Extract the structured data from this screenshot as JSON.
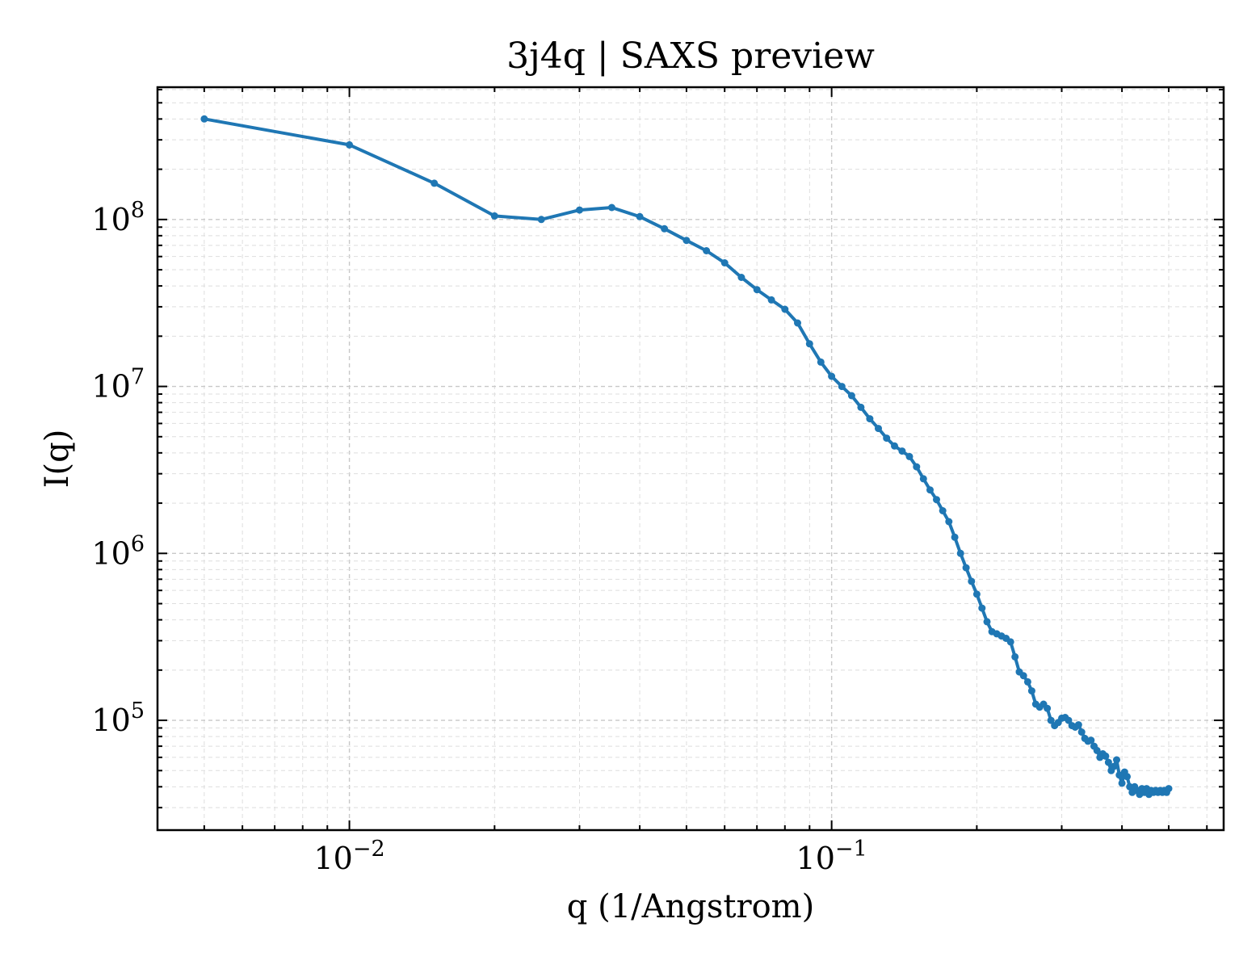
{
  "chart_data": {
    "type": "line",
    "title": "3j4q | SAXS preview",
    "xlabel": "q (1/Angstrom)",
    "ylabel": "I(q)",
    "xscale": "log",
    "yscale": "log",
    "xlim": [
      0.004,
      0.65
    ],
    "ylim": [
      22000,
      620000000
    ],
    "grid": true,
    "legend": "none",
    "x_ticks": [
      {
        "value": 0.01,
        "base": "10",
        "exp": "−2"
      },
      {
        "value": 0.1,
        "base": "10",
        "exp": "−1"
      }
    ],
    "y_ticks": [
      {
        "value": 100000,
        "base": "10",
        "exp": "5"
      },
      {
        "value": 1000000,
        "base": "10",
        "exp": "6"
      },
      {
        "value": 10000000,
        "base": "10",
        "exp": "7"
      },
      {
        "value": 100000000,
        "base": "10",
        "exp": "8"
      }
    ],
    "series": [
      {
        "color": "#1f77b4",
        "x": [
          0.005,
          0.01,
          0.015,
          0.02,
          0.025,
          0.03,
          0.035,
          0.04,
          0.045,
          0.05,
          0.055,
          0.06,
          0.065,
          0.07,
          0.075,
          0.08,
          0.085,
          0.09,
          0.095,
          0.1,
          0.105,
          0.11,
          0.115,
          0.12,
          0.125,
          0.13,
          0.135,
          0.14,
          0.145,
          0.15,
          0.155,
          0.16,
          0.165,
          0.17,
          0.175,
          0.18,
          0.185,
          0.19,
          0.195,
          0.2,
          0.205,
          0.21,
          0.215,
          0.22,
          0.225,
          0.23,
          0.235,
          0.24,
          0.245,
          0.25,
          0.255,
          0.26,
          0.265,
          0.27,
          0.275,
          0.28,
          0.285,
          0.29,
          0.295,
          0.3,
          0.305,
          0.31,
          0.315,
          0.32,
          0.325,
          0.33,
          0.335,
          0.34,
          0.345,
          0.35,
          0.355,
          0.36,
          0.365,
          0.37,
          0.375,
          0.38,
          0.385,
          0.39,
          0.395,
          0.4,
          0.405,
          0.41,
          0.415,
          0.42,
          0.425,
          0.43,
          0.435,
          0.44,
          0.445,
          0.45,
          0.455,
          0.46,
          0.465,
          0.47,
          0.475,
          0.48,
          0.485,
          0.49,
          0.495,
          0.5
        ],
        "y": [
          400000000,
          280000000,
          165000000,
          105000000,
          100000000,
          114000000,
          118000000,
          104000000,
          88000000,
          75000000,
          65000000,
          55000000,
          45000000,
          38000000,
          33000000,
          29000000,
          24000000,
          18000000,
          14000000,
          11500000,
          10000000,
          8800000,
          7500000,
          6400000,
          5600000,
          4900000,
          4400000,
          4100000,
          3800000,
          3300000,
          2800000,
          2400000,
          2100000,
          1800000,
          1550000,
          1250000,
          1000000,
          820000,
          680000,
          570000,
          470000,
          390000,
          340000,
          330000,
          320000,
          310000,
          295000,
          240000,
          195000,
          185000,
          170000,
          150000,
          125000,
          120000,
          125000,
          118000,
          100000,
          93000,
          97000,
          103000,
          104000,
          100000,
          93000,
          91000,
          94000,
          85000,
          78000,
          75000,
          76000,
          70000,
          66000,
          60000,
          63000,
          61000,
          56000,
          50000,
          53000,
          58000,
          47000,
          42000,
          49000,
          46000,
          40000,
          37000,
          40000,
          38000,
          36000,
          39000,
          37000,
          39000,
          36000,
          38000,
          37000,
          38000,
          37000,
          38000,
          37000,
          38000,
          37000,
          39000
        ]
      }
    ]
  }
}
